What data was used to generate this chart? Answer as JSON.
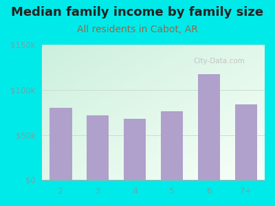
{
  "title": "Median family income by family size",
  "subtitle": "All residents in Cabot, AR",
  "categories": [
    "2",
    "3",
    "4",
    "5",
    "6",
    "7+"
  ],
  "values": [
    80000,
    72000,
    68000,
    76000,
    117000,
    84000
  ],
  "ylim": [
    0,
    150000
  ],
  "yticks": [
    0,
    50000,
    100000,
    150000
  ],
  "ytick_labels": [
    "$0",
    "$50k",
    "$100k",
    "$150k"
  ],
  "bar_color": "#b0a0cc",
  "bg_outer": "#00eaea",
  "bg_inner_topleft": "#cceedd",
  "bg_inner_bottomright": "#f5fff5",
  "title_fontsize": 13,
  "subtitle_fontsize": 10,
  "subtitle_color": "#996644",
  "title_color": "#222222",
  "tick_label_color": "#66aaaa",
  "watermark": "City-Data.com"
}
